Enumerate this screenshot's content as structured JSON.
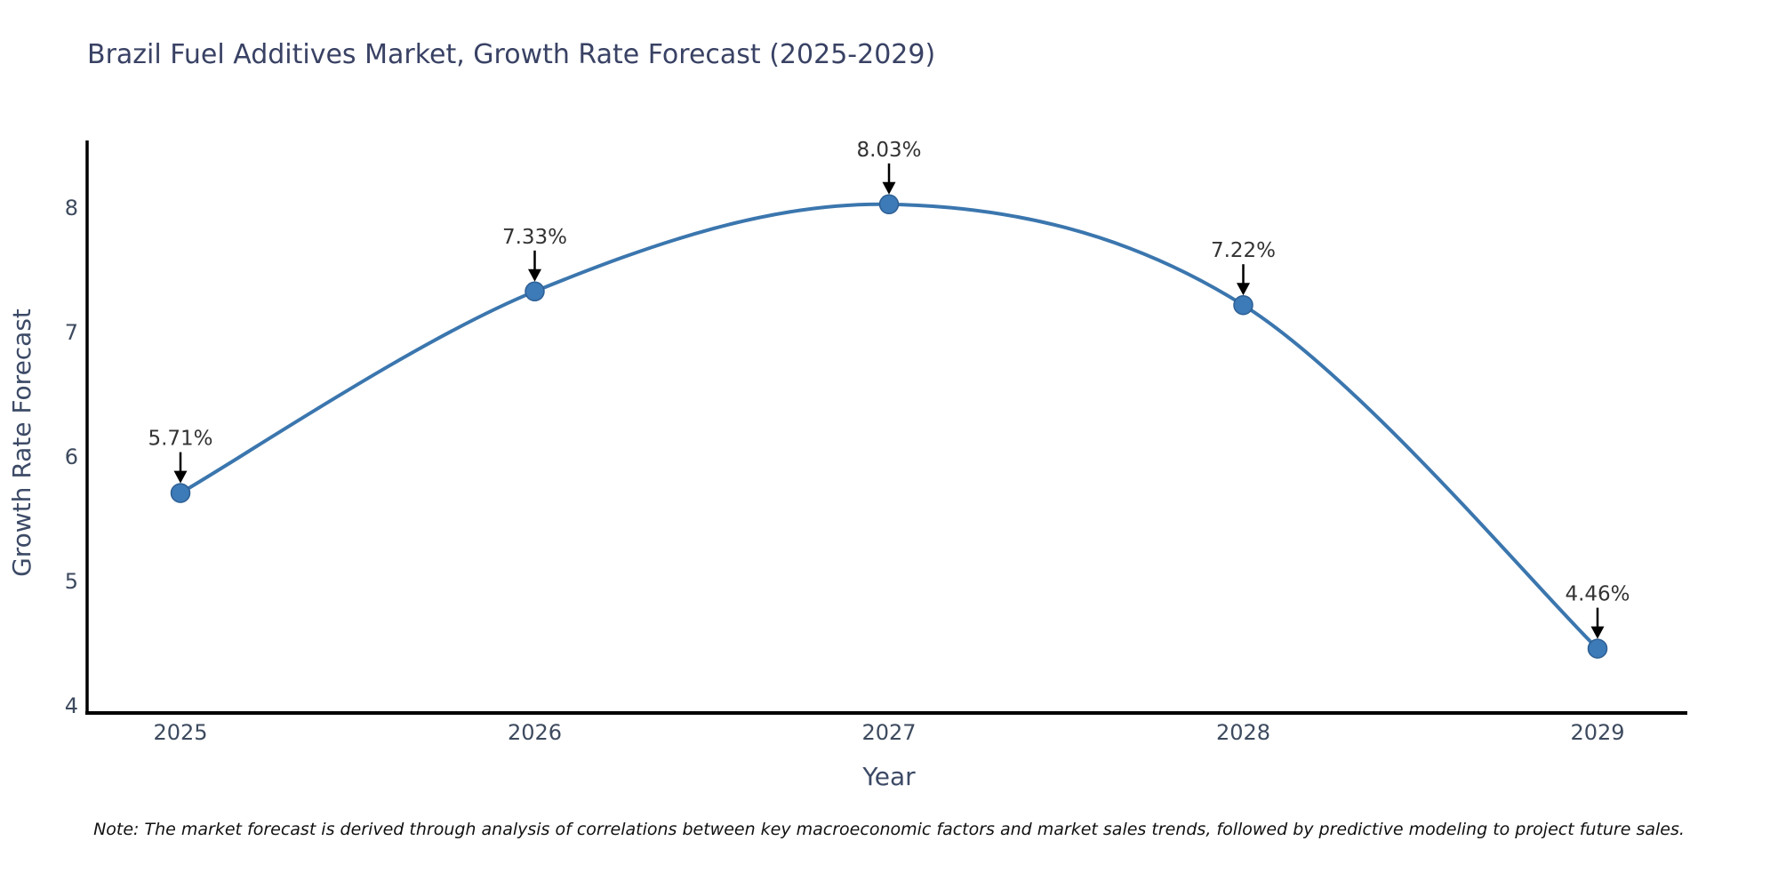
{
  "title": "Brazil Fuel Additives Market, Growth Rate Forecast (2025-2029)",
  "note": "Note: The market forecast is derived through analysis of correlations between key macroeconomic factors and market sales trends, followed by predictive modeling to project future sales.",
  "chart_data": {
    "type": "line",
    "title": "Brazil Fuel Additives Market, Growth Rate Forecast (2025-2029)",
    "xlabel": "Year",
    "ylabel": "Growth Rate Forecast",
    "categories": [
      "2025",
      "2026",
      "2027",
      "2028",
      "2029"
    ],
    "values": [
      5.71,
      7.33,
      8.03,
      7.22,
      4.46
    ],
    "point_labels": [
      "5.71%",
      "7.33%",
      "8.03%",
      "7.22%",
      "4.46%"
    ],
    "yticks": [
      4,
      5,
      6,
      7,
      8
    ],
    "ylim": [
      4,
      8
    ],
    "grid": false,
    "legend": "none",
    "smooth": true,
    "marker": "circle",
    "colors": {
      "line": "#3b76ae",
      "marker_fill": "#3d7ab8",
      "marker_edge": "#2d5f93",
      "annotation_text": "#333333",
      "arrow": "#000000",
      "axis_spine": "#000000",
      "tick_label": "#3d4a5e",
      "axis_title": "#3c4a66",
      "chart_title": "#394264",
      "note_text": "#111111"
    }
  }
}
